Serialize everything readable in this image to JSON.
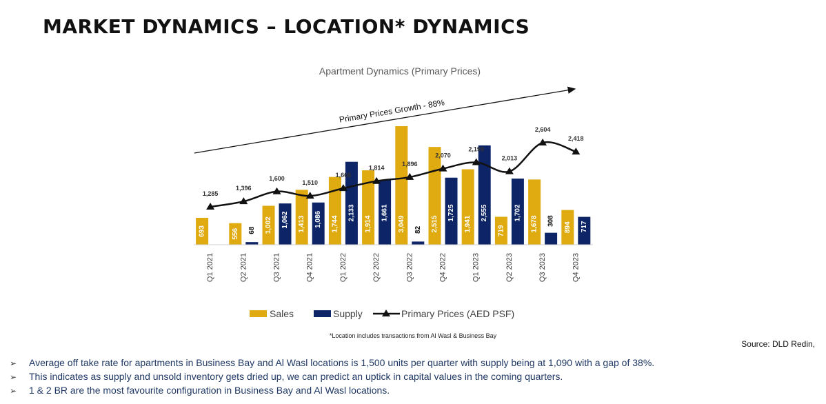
{
  "page": {
    "title": "MARKET DYNAMICS – LOCATION* DYNAMICS",
    "footnote": "*Location includes transactions from Al Wasl & Business Bay",
    "source": "Source: DLD Redin,",
    "bullet_glyph": "➢",
    "bullets": [
      "Average off take rate for apartments in Business Bay and Al Wasl locations is 1,500 units per quarter with supply being at 1,090 with a gap of 38%.",
      "This indicates as supply and unsold inventory gets dried up, we can predict an uptick in capital values in the coming quarters.",
      "1 & 2 BR are the most favourite configuration in Business Bay and Al Wasl locations."
    ]
  },
  "chart_data": {
    "type": "bar",
    "title": "Apartment Dynamics (Primary Prices)",
    "annotation": "Primary Prices Growth - 88%",
    "categories": [
      "Q1 2021",
      "Q2 2021",
      "Q3 2021",
      "Q4 2021",
      "Q1 2022",
      "Q2 2022",
      "Q3 2022",
      "Q4 2022",
      "Q1 2023",
      "Q2 2023",
      "Q3 2023",
      "Q4 2023"
    ],
    "series": [
      {
        "name": "Sales",
        "type": "bar",
        "color": "#e0ab10",
        "values": [
          693,
          556,
          1002,
          1413,
          1744,
          1914,
          3049,
          2515,
          1941,
          719,
          1678,
          894
        ]
      },
      {
        "name": "Supply",
        "type": "bar",
        "color": "#0d2466",
        "values": [
          null,
          68,
          1062,
          1086,
          2133,
          1661,
          82,
          1725,
          2555,
          1702,
          308,
          717
        ]
      },
      {
        "name": "Primary Prices (AED PSF)",
        "type": "line",
        "color": "#111111",
        "marker": "triangle",
        "values": [
          1285,
          1396,
          1600,
          1510,
          1666,
          1814,
          1896,
          2070,
          2199,
          2013,
          2604,
          2418
        ]
      }
    ],
    "legend": "bottom",
    "grid": false
  }
}
